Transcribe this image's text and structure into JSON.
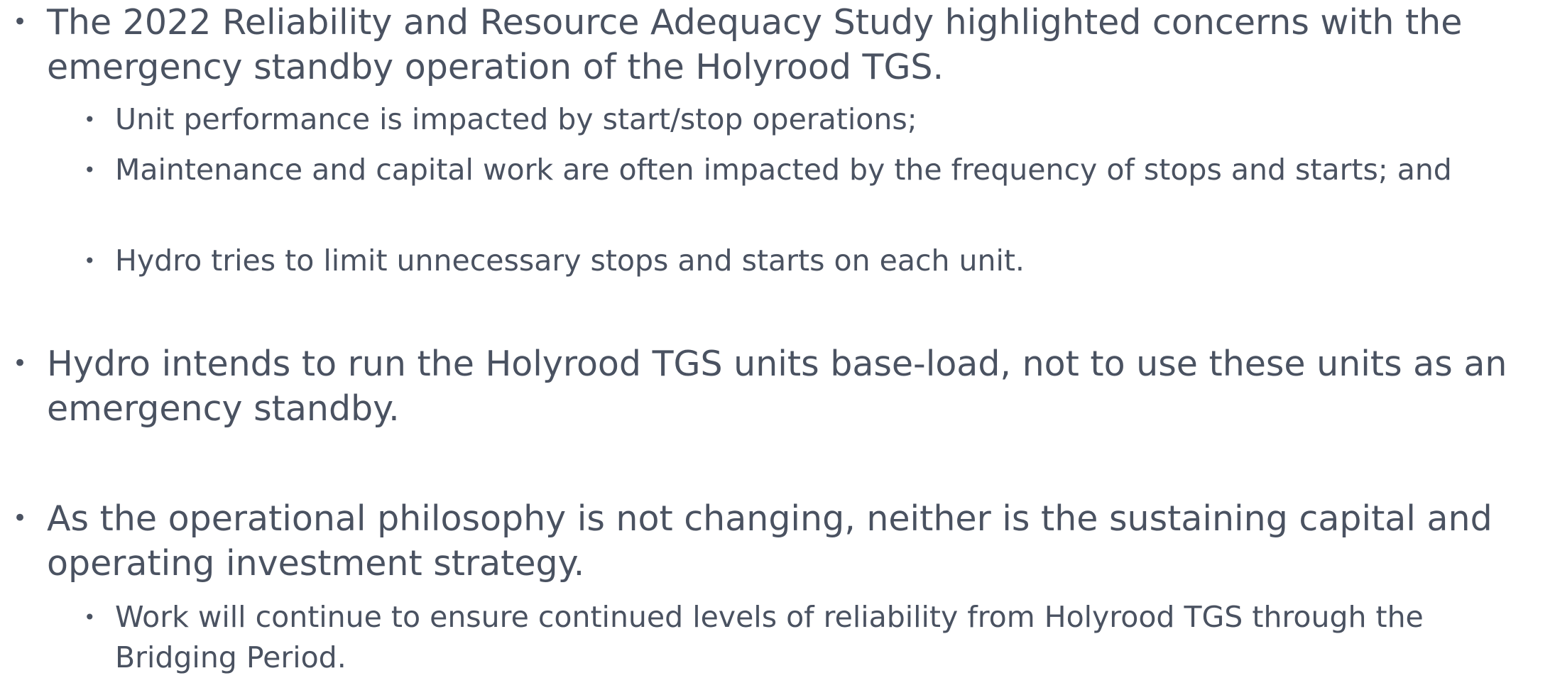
{
  "bullets": [
    {
      "text": "The 2022 Reliability and Resource Adequacy Study highlighted concerns with the emergency standby operation of the Holyrood TGS.",
      "sub": [
        "Unit performance is impacted by start/stop operations;",
        "Maintenance and capital work are often impacted by the frequency of stops and starts; and",
        "Hydro tries to limit unnecessary stops and starts on each unit."
      ]
    },
    {
      "text": "Hydro intends to run the Holyrood TGS units base-load, not to use these units as an emergency standby.",
      "sub": []
    },
    {
      "text": "As the operational philosophy is not changing, neither is the sustaining capital and operating investment strategy.",
      "sub": [
        "Work will continue to ensure continued levels of reliability from Holyrood TGS through the Bridging Period."
      ]
    }
  ]
}
